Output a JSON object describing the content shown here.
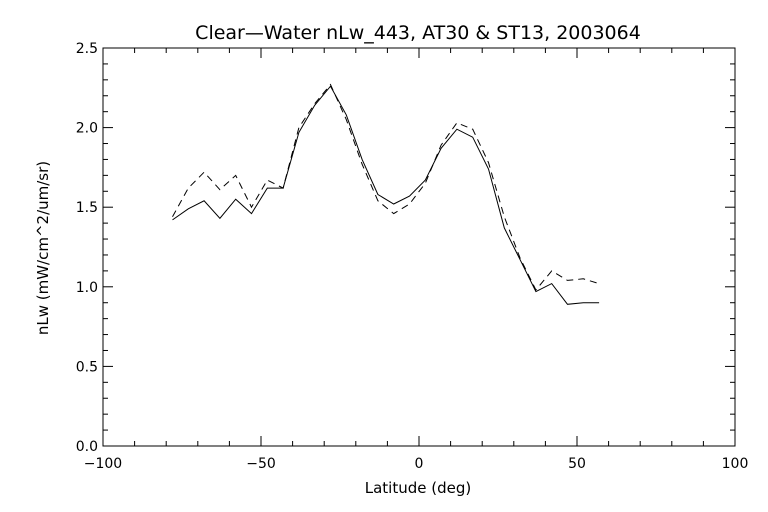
{
  "chart_data": {
    "type": "line",
    "title": "Clear—Water nLw_443, AT30 & ST13, 2003064",
    "xlabel": "Latitude (deg)",
    "ylabel": "nLw (mW/cm^2/um/sr)",
    "xlim": [
      -100,
      100
    ],
    "ylim": [
      0.0,
      2.5
    ],
    "xticks": [
      -100,
      -50,
      0,
      50,
      100
    ],
    "xtick_labels": [
      "−100",
      "−50",
      "0",
      "50",
      "100"
    ],
    "yticks": [
      0.0,
      0.5,
      1.0,
      1.5,
      2.0,
      2.5
    ],
    "ytick_labels": [
      "0.0",
      "0.5",
      "1.0",
      "1.5",
      "2.0",
      "2.5"
    ],
    "x_minor_step": 10,
    "y_minor_step": 0.1,
    "grid": false,
    "legend": "none",
    "series": [
      {
        "style": "solid",
        "color": "#000000",
        "x": [
          -78,
          -73,
          -68,
          -63,
          -58,
          -53,
          -48,
          -43,
          -38,
          -33,
          -28,
          -23,
          -18,
          -13,
          -8,
          -3,
          2,
          7,
          12,
          17,
          22,
          27,
          32,
          37,
          42,
          47,
          52,
          57
        ],
        "y": [
          1.42,
          1.49,
          1.54,
          1.43,
          1.55,
          1.46,
          1.62,
          1.62,
          1.97,
          2.14,
          2.26,
          2.08,
          1.8,
          1.58,
          1.52,
          1.57,
          1.67,
          1.87,
          1.99,
          1.94,
          1.74,
          1.37,
          1.17,
          0.97,
          1.02,
          0.89,
          0.9,
          0.9
        ]
      },
      {
        "style": "dashed",
        "color": "#000000",
        "x": [
          -78,
          -73,
          -68,
          -63,
          -58,
          -53,
          -48,
          -43,
          -38,
          -33,
          -28,
          -23,
          -18,
          -13,
          -8,
          -3,
          2,
          7,
          12,
          17,
          22,
          27,
          32,
          37,
          42,
          47,
          52,
          57
        ],
        "y": [
          1.44,
          1.62,
          1.72,
          1.61,
          1.7,
          1.5,
          1.67,
          1.62,
          2.0,
          2.15,
          2.27,
          2.05,
          1.77,
          1.54,
          1.46,
          1.52,
          1.65,
          1.89,
          2.03,
          1.99,
          1.78,
          1.44,
          1.18,
          0.98,
          1.1,
          1.04,
          1.05,
          1.02
        ]
      }
    ]
  }
}
